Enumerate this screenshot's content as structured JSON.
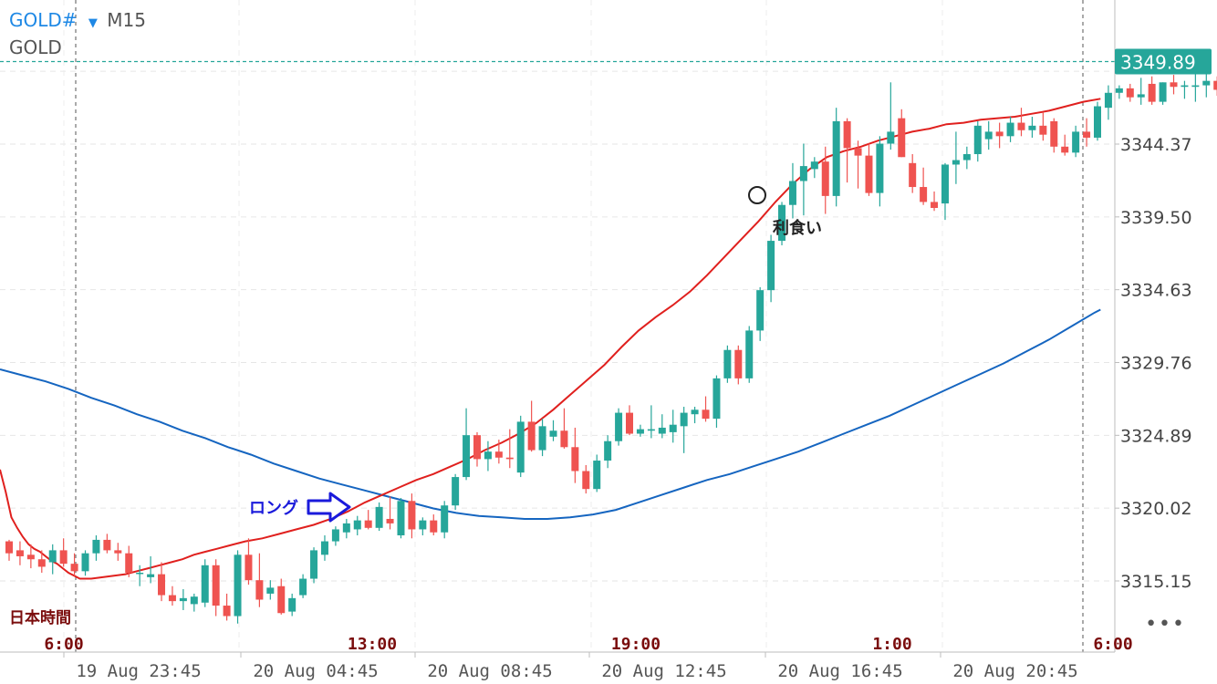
{
  "header": {
    "symbol": "GOLD#",
    "timeframe_arrow": "▼",
    "timeframe": "M15",
    "subtitle": "GOLD",
    "symbol_color": "#1e88e5"
  },
  "more_menu": "•••",
  "chart_data": {
    "type": "candlestick",
    "price_axis_ticks": [
      "3315.15",
      "3320.02",
      "3324.89",
      "3329.76",
      "3334.63",
      "3339.50",
      "3344.37"
    ],
    "current_price": "3349.89",
    "current_price_color": "#26a69a",
    "time_axis_labels": [
      "19 Aug 23:45",
      "20 Aug 04:45",
      "20 Aug 08:45",
      "20 Aug 12:45",
      "20 Aug 16:45",
      "20 Aug 20:45"
    ],
    "jst_label": "日本時間",
    "jst_times": [
      "6:00",
      "13:00",
      "19:00",
      "1:00",
      "6:00"
    ],
    "annotations": {
      "entry_label": "ロング",
      "exit_label": "利食い"
    },
    "colors": {
      "up": "#26a69a",
      "down": "#ef5350",
      "ma_fast": "#e0201e",
      "ma_slow": "#1565c0",
      "annotation_blue": "#1a1adb"
    },
    "ylim": [
      3312.5,
      3351.5
    ],
    "candles": [
      [
        3317.8,
        3317.9,
        3316.5,
        3317.0
      ],
      [
        3317.2,
        3317.8,
        3316.2,
        3316.8
      ],
      [
        3316.9,
        3317.6,
        3316.0,
        3316.6
      ],
      [
        3316.6,
        3317.2,
        3315.7,
        3316.1
      ],
      [
        3316.4,
        3317.6,
        3315.6,
        3317.2
      ],
      [
        3317.2,
        3318.0,
        3316.1,
        3316.3
      ],
      [
        3316.3,
        3317.0,
        3315.5,
        3315.8
      ],
      [
        3315.8,
        3317.2,
        3315.5,
        3317.0
      ],
      [
        3317.0,
        3318.2,
        3316.5,
        3317.9
      ],
      [
        3317.9,
        3318.3,
        3317.0,
        3317.2
      ],
      [
        3317.2,
        3317.7,
        3316.5,
        3317.0
      ],
      [
        3317.0,
        3317.5,
        3315.4,
        3315.7
      ],
      [
        3315.7,
        3316.2,
        3314.8,
        3315.7
      ],
      [
        3315.4,
        3316.8,
        3315.0,
        3315.6
      ],
      [
        3315.6,
        3316.4,
        3313.8,
        3314.2
      ],
      [
        3314.2,
        3314.8,
        3313.5,
        3313.8
      ],
      [
        3313.8,
        3314.6,
        3313.2,
        3314.0
      ],
      [
        3313.6,
        3314.3,
        3313.1,
        3314.1
      ],
      [
        3313.7,
        3316.6,
        3313.4,
        3316.2
      ],
      [
        3316.2,
        3316.6,
        3312.8,
        3313.5
      ],
      [
        3313.5,
        3314.3,
        3312.5,
        3312.8
      ],
      [
        3312.8,
        3317.2,
        3312.3,
        3316.9
      ],
      [
        3316.9,
        3318.0,
        3314.9,
        3315.2
      ],
      [
        3315.2,
        3317.0,
        3313.4,
        3313.9
      ],
      [
        3314.3,
        3315.2,
        3313.9,
        3314.7
      ],
      [
        3314.8,
        3315.3,
        3312.9,
        3313.0
      ],
      [
        3313.1,
        3314.3,
        3312.8,
        3314.0
      ],
      [
        3314.2,
        3315.6,
        3314.0,
        3315.3
      ],
      [
        3315.3,
        3317.4,
        3315.0,
        3317.2
      ],
      [
        3316.9,
        3318.2,
        3316.5,
        3317.8
      ],
      [
        3317.8,
        3318.8,
        3317.5,
        3318.6
      ],
      [
        3318.4,
        3319.3,
        3318.0,
        3319.0
      ],
      [
        3318.6,
        3319.5,
        3318.2,
        3319.2
      ],
      [
        3319.2,
        3319.9,
        3318.6,
        3318.7
      ],
      [
        3318.7,
        3320.4,
        3318.5,
        3320.1
      ],
      [
        3319.3,
        3320.8,
        3318.6,
        3319.0
      ],
      [
        3318.2,
        3320.7,
        3318.0,
        3320.5
      ],
      [
        3320.5,
        3321.0,
        3318.0,
        3318.6
      ],
      [
        3318.6,
        3319.4,
        3318.2,
        3319.2
      ],
      [
        3319.2,
        3319.6,
        3318.2,
        3318.4
      ],
      [
        3318.4,
        3320.5,
        3318.0,
        3320.2
      ],
      [
        3320.2,
        3322.3,
        3319.9,
        3322.1
      ],
      [
        3322.1,
        3326.7,
        3321.9,
        3324.9
      ],
      [
        3324.9,
        3325.1,
        3322.8,
        3323.3
      ],
      [
        3323.3,
        3324.5,
        3322.5,
        3323.8
      ],
      [
        3323.8,
        3324.6,
        3323.0,
        3323.4
      ],
      [
        3323.4,
        3325.3,
        3322.7,
        3323.3
      ],
      [
        3322.4,
        3326.2,
        3322.1,
        3325.8
      ],
      [
        3325.8,
        3327.2,
        3323.8,
        3323.9
      ],
      [
        3323.9,
        3326.0,
        3323.5,
        3325.5
      ],
      [
        3324.8,
        3325.9,
        3324.5,
        3325.2
      ],
      [
        3325.2,
        3326.7,
        3324.0,
        3324.1
      ],
      [
        3324.1,
        3325.4,
        3321.7,
        3322.5
      ],
      [
        3322.5,
        3322.9,
        3321.0,
        3321.3
      ],
      [
        3321.3,
        3323.6,
        3321.1,
        3323.2
      ],
      [
        3323.2,
        3324.9,
        3322.7,
        3324.5
      ],
      [
        3324.5,
        3326.7,
        3324.2,
        3326.4
      ],
      [
        3326.4,
        3326.9,
        3324.9,
        3325.0
      ],
      [
        3325.0,
        3325.6,
        3324.8,
        3325.3
      ],
      [
        3325.2,
        3326.9,
        3324.7,
        3325.3
      ],
      [
        3325.0,
        3326.3,
        3324.7,
        3325.4
      ],
      [
        3325.1,
        3326.6,
        3324.4,
        3325.6
      ],
      [
        3325.5,
        3326.8,
        3323.7,
        3326.4
      ],
      [
        3326.3,
        3326.8,
        3325.7,
        3326.6
      ],
      [
        3326.6,
        3327.5,
        3325.8,
        3326.0
      ],
      [
        3326.0,
        3328.9,
        3325.4,
        3328.7
      ],
      [
        3328.7,
        3330.9,
        3328.4,
        3330.6
      ],
      [
        3330.6,
        3330.9,
        3328.3,
        3328.7
      ],
      [
        3328.7,
        3332.2,
        3328.4,
        3331.9
      ],
      [
        3331.9,
        3334.8,
        3331.2,
        3334.6
      ],
      [
        3334.6,
        3338.3,
        3333.8,
        3337.9
      ],
      [
        3337.9,
        3340.5,
        3337.6,
        3340.3
      ],
      [
        3340.3,
        3343.1,
        3339.4,
        3341.9
      ],
      [
        3341.9,
        3344.4,
        3339.6,
        3342.9
      ],
      [
        3342.7,
        3343.5,
        3342.1,
        3343.2
      ],
      [
        3343.2,
        3344.2,
        3339.7,
        3340.9
      ],
      [
        3340.9,
        3346.8,
        3340.2,
        3345.9
      ],
      [
        3345.9,
        3346.1,
        3341.8,
        3344.1
      ],
      [
        3344.1,
        3344.6,
        3341.4,
        3343.6
      ],
      [
        3343.6,
        3344.4,
        3340.9,
        3341.1
      ],
      [
        3341.1,
        3344.9,
        3340.2,
        3344.4
      ],
      [
        3344.4,
        3348.5,
        3344.0,
        3345.2
      ],
      [
        3346.1,
        3346.7,
        3343.5,
        3343.5
      ],
      [
        3343.1,
        3343.7,
        3341.1,
        3341.5
      ],
      [
        3341.5,
        3342.8,
        3340.3,
        3340.5
      ],
      [
        3340.5,
        3341.2,
        3339.9,
        3340.1
      ],
      [
        3340.4,
        3343.1,
        3339.3,
        3343.0
      ],
      [
        3343.0,
        3345.2,
        3341.7,
        3343.3
      ],
      [
        3343.3,
        3344.2,
        3342.7,
        3343.7
      ],
      [
        3343.7,
        3345.9,
        3343.2,
        3345.6
      ],
      [
        3344.7,
        3345.9,
        3344.0,
        3345.2
      ],
      [
        3345.2,
        3345.8,
        3344.1,
        3344.9
      ],
      [
        3344.9,
        3346.2,
        3344.5,
        3345.8
      ],
      [
        3345.8,
        3346.8,
        3344.9,
        3345.3
      ],
      [
        3345.3,
        3346.2,
        3344.8,
        3345.6
      ],
      [
        3345.6,
        3346.5,
        3344.6,
        3345.0
      ],
      [
        3345.9,
        3346.1,
        3343.8,
        3344.2
      ],
      [
        3344.2,
        3345.0,
        3343.6,
        3343.8
      ],
      [
        3343.8,
        3345.6,
        3343.5,
        3345.2
      ],
      [
        3345.2,
        3346.1,
        3344.2,
        3344.8
      ],
      [
        3344.8,
        3347.2,
        3344.6,
        3346.9
      ],
      [
        3346.8,
        3348.3,
        3346.0,
        3347.8
      ],
      [
        3347.8,
        3348.3,
        3347.4,
        3348.1
      ],
      [
        3348.1,
        3348.4,
        3347.2,
        3347.5
      ],
      [
        3347.5,
        3348.8,
        3347.0,
        3347.7
      ],
      [
        3348.4,
        3348.9,
        3347.0,
        3347.2
      ],
      [
        3347.2,
        3348.5,
        3347.0,
        3348.5
      ],
      [
        3348.5,
        3349.0,
        3347.7,
        3348.2
      ],
      [
        3348.2,
        3348.6,
        3347.4,
        3348.3
      ],
      [
        3348.2,
        3349.2,
        3347.2,
        3348.3
      ],
      [
        3348.3,
        3349.2,
        3347.5,
        3348.6
      ],
      [
        3348.6,
        3348.9,
        3347.6,
        3348.0
      ],
      [
        3348.3,
        3349.9,
        3347.8,
        3349.6
      ],
      [
        3349.1,
        3350.9,
        3348.0,
        3350.1
      ],
      [
        3350.1,
        3351.0,
        3348.5,
        3349.9
      ],
      [
        3349.9,
        3350.8,
        3348.9,
        3349.9
      ]
    ],
    "ma_fast": [
      [
        0,
        3322.6
      ],
      [
        5,
        3321.1
      ],
      [
        10,
        3319.4
      ],
      [
        15,
        3318.7
      ],
      [
        20,
        3318.1
      ],
      [
        25,
        3317.6
      ],
      [
        30,
        3317.3
      ],
      [
        35,
        3317.1
      ],
      [
        40,
        3316.8
      ],
      [
        45,
        3316.5
      ],
      [
        50,
        3316.3
      ],
      [
        55,
        3316.0
      ],
      [
        60,
        3315.7
      ],
      [
        65,
        3315.5
      ],
      [
        70,
        3315.3
      ],
      [
        75,
        3315.3
      ],
      [
        80,
        3315.3
      ],
      [
        90,
        3315.4
      ],
      [
        100,
        3315.5
      ],
      [
        110,
        3315.6
      ],
      [
        120,
        3315.8
      ],
      [
        130,
        3316.0
      ],
      [
        140,
        3316.2
      ],
      [
        150,
        3316.4
      ],
      [
        160,
        3316.6
      ],
      [
        170,
        3316.9
      ],
      [
        180,
        3317.1
      ],
      [
        190,
        3317.3
      ],
      [
        200,
        3317.5
      ],
      [
        215,
        3317.8
      ],
      [
        230,
        3318.0
      ],
      [
        245,
        3318.3
      ],
      [
        260,
        3318.6
      ],
      [
        275,
        3318.9
      ],
      [
        290,
        3319.3
      ],
      [
        305,
        3319.8
      ],
      [
        320,
        3320.4
      ],
      [
        335,
        3320.9
      ],
      [
        350,
        3321.4
      ],
      [
        365,
        3321.9
      ],
      [
        380,
        3322.3
      ],
      [
        395,
        3322.8
      ],
      [
        410,
        3323.3
      ],
      [
        425,
        3323.9
      ],
      [
        440,
        3324.4
      ],
      [
        455,
        3325.0
      ],
      [
        470,
        3325.7
      ],
      [
        485,
        3326.6
      ],
      [
        500,
        3327.6
      ],
      [
        515,
        3328.6
      ],
      [
        530,
        3329.6
      ],
      [
        545,
        3330.8
      ],
      [
        560,
        3331.9
      ],
      [
        575,
        3332.8
      ],
      [
        590,
        3333.6
      ],
      [
        605,
        3334.5
      ],
      [
        620,
        3335.6
      ],
      [
        635,
        3336.8
      ],
      [
        650,
        3338.0
      ],
      [
        665,
        3339.2
      ],
      [
        680,
        3340.5
      ],
      [
        695,
        3341.7
      ],
      [
        710,
        3342.7
      ],
      [
        725,
        3343.5
      ],
      [
        740,
        3343.9
      ],
      [
        755,
        3344.2
      ],
      [
        770,
        3344.6
      ],
      [
        785,
        3344.9
      ],
      [
        800,
        3345.2
      ],
      [
        815,
        3345.4
      ],
      [
        830,
        3345.7
      ],
      [
        845,
        3345.8
      ],
      [
        860,
        3346.0
      ],
      [
        875,
        3346.1
      ],
      [
        890,
        3346.2
      ],
      [
        905,
        3346.4
      ],
      [
        920,
        3346.6
      ],
      [
        935,
        3346.9
      ],
      [
        950,
        3347.2
      ],
      [
        965,
        3347.4
      ]
    ],
    "ma_slow": [
      [
        0,
        3329.3
      ],
      [
        20,
        3328.9
      ],
      [
        40,
        3328.5
      ],
      [
        60,
        3328.0
      ],
      [
        80,
        3327.4
      ],
      [
        100,
        3326.9
      ],
      [
        120,
        3326.3
      ],
      [
        140,
        3325.8
      ],
      [
        160,
        3325.2
      ],
      [
        180,
        3324.7
      ],
      [
        200,
        3324.1
      ],
      [
        220,
        3323.6
      ],
      [
        240,
        3323.0
      ],
      [
        260,
        3322.5
      ],
      [
        280,
        3322.0
      ],
      [
        300,
        3321.6
      ],
      [
        320,
        3321.2
      ],
      [
        340,
        3320.8
      ],
      [
        360,
        3320.4
      ],
      [
        380,
        3320.0
      ],
      [
        400,
        3319.7
      ],
      [
        420,
        3319.5
      ],
      [
        440,
        3319.4
      ],
      [
        460,
        3319.3
      ],
      [
        480,
        3319.3
      ],
      [
        500,
        3319.4
      ],
      [
        520,
        3319.6
      ],
      [
        540,
        3319.9
      ],
      [
        560,
        3320.4
      ],
      [
        580,
        3320.9
      ],
      [
        600,
        3321.4
      ],
      [
        620,
        3321.9
      ],
      [
        640,
        3322.3
      ],
      [
        660,
        3322.8
      ],
      [
        680,
        3323.3
      ],
      [
        700,
        3323.8
      ],
      [
        720,
        3324.4
      ],
      [
        740,
        3325.0
      ],
      [
        760,
        3325.6
      ],
      [
        780,
        3326.2
      ],
      [
        800,
        3326.9
      ],
      [
        820,
        3327.6
      ],
      [
        840,
        3328.3
      ],
      [
        860,
        3329.0
      ],
      [
        880,
        3329.7
      ],
      [
        900,
        3330.5
      ],
      [
        920,
        3331.3
      ],
      [
        940,
        3332.2
      ],
      [
        960,
        3333.1
      ],
      [
        965,
        3333.3
      ]
    ]
  }
}
